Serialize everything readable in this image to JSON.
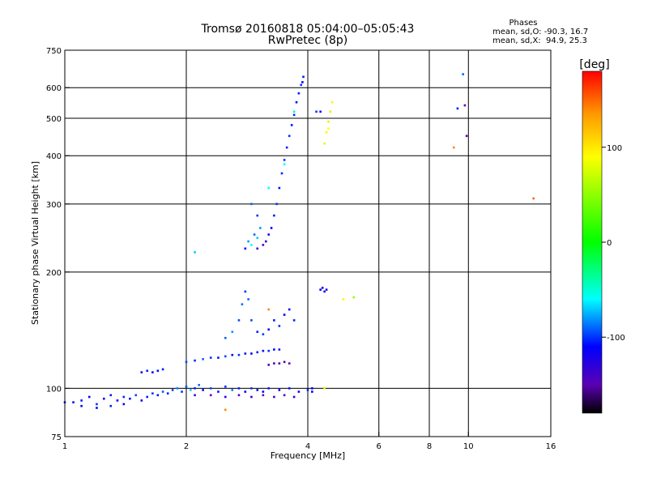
{
  "title": {
    "line1": "Tromsø 20160818 05:04:00–05:05:43",
    "line2": "RwPretec (8p)"
  },
  "phase_box": {
    "heading": "Phases",
    "line_o": "mean, sd,O: -90.3, 16.7",
    "line_x": "mean, sd,X:  94.9, 25.3"
  },
  "colorbar": {
    "label": "[deg]",
    "min": -180,
    "max": 180,
    "ticks": [
      {
        "value": 100,
        "label": "100"
      },
      {
        "value": 0,
        "label": "0"
      },
      {
        "value": -100,
        "label": "-100"
      }
    ],
    "stops": [
      {
        "value": -180,
        "color": "#000000"
      },
      {
        "value": -150,
        "color": "#5a00b4"
      },
      {
        "value": -110,
        "color": "#0000ff"
      },
      {
        "value": -60,
        "color": "#00ffff"
      },
      {
        "value": 0,
        "color": "#00ff00"
      },
      {
        "value": 90,
        "color": "#ffff00"
      },
      {
        "value": 135,
        "color": "#ff9900"
      },
      {
        "value": 180,
        "color": "#ff0000"
      }
    ]
  },
  "chart_data": {
    "type": "scatter",
    "xlabel": "Frequency [MHz]",
    "ylabel": "Stationary phase Virtual Height [km]",
    "x_scale": "log",
    "y_scale": "log",
    "xlim": [
      1,
      16
    ],
    "ylim": [
      75,
      750
    ],
    "x_ticks": [
      {
        "value": 1,
        "label": "1"
      },
      {
        "value": 2,
        "label": "2"
      },
      {
        "value": 4,
        "label": "4"
      },
      {
        "value": 6,
        "label": "6"
      },
      {
        "value": 8,
        "label": "8"
      },
      {
        "value": 10,
        "label": "10"
      },
      {
        "value": 16,
        "label": "16"
      }
    ],
    "x_grid": [
      2,
      4,
      6,
      8,
      10
    ],
    "y_ticks": [
      {
        "value": 75,
        "label": "75"
      },
      {
        "value": 100,
        "label": "100"
      },
      {
        "value": 200,
        "label": "200"
      },
      {
        "value": 300,
        "label": "300"
      },
      {
        "value": 400,
        "label": "400"
      },
      {
        "value": 500,
        "label": "500"
      },
      {
        "value": 600,
        "label": "600"
      },
      {
        "value": 750,
        "label": "750"
      }
    ],
    "y_grid": [
      100,
      200,
      300,
      400,
      500,
      600
    ],
    "points": [
      [
        1.0,
        92,
        -105
      ],
      [
        1.05,
        92,
        -108
      ],
      [
        1.1,
        93,
        -104
      ],
      [
        1.15,
        95,
        -110
      ],
      [
        1.2,
        91,
        -100
      ],
      [
        1.25,
        94,
        -112
      ],
      [
        1.3,
        96,
        -106
      ],
      [
        1.35,
        93,
        -118
      ],
      [
        1.4,
        95,
        -102
      ],
      [
        1.45,
        94,
        -108
      ],
      [
        1.5,
        96,
        -96
      ],
      [
        1.55,
        93,
        -110
      ],
      [
        1.6,
        95,
        -104
      ],
      [
        1.65,
        97,
        -100
      ],
      [
        1.7,
        96,
        -106
      ],
      [
        1.75,
        98,
        -92
      ],
      [
        1.8,
        97,
        -104
      ],
      [
        1.85,
        99,
        -98
      ],
      [
        1.9,
        100,
        -84
      ],
      [
        1.95,
        98,
        -100
      ],
      [
        2.0,
        101,
        -94
      ],
      [
        2.05,
        99,
        -70
      ],
      [
        2.1,
        100,
        -104
      ],
      [
        2.15,
        102,
        -88
      ],
      [
        2.2,
        99,
        -110
      ],
      [
        2.3,
        100,
        -96
      ],
      [
        2.4,
        98,
        -106
      ],
      [
        2.5,
        101,
        -100
      ],
      [
        2.6,
        99,
        -86
      ],
      [
        2.7,
        100,
        -104
      ],
      [
        2.8,
        98,
        -112
      ],
      [
        2.9,
        100,
        -100
      ],
      [
        3.0,
        99,
        -108
      ],
      [
        3.1,
        98,
        -116
      ],
      [
        3.2,
        100,
        -104
      ],
      [
        3.4,
        99,
        -112
      ],
      [
        3.6,
        100,
        -106
      ],
      [
        3.8,
        98,
        -120
      ],
      [
        4.0,
        99,
        -104
      ],
      [
        4.1,
        100,
        -112
      ],
      [
        1.1,
        90,
        -108
      ],
      [
        1.2,
        89,
        -112
      ],
      [
        1.3,
        90,
        -104
      ],
      [
        1.4,
        91,
        -110
      ],
      [
        2.1,
        96,
        -140
      ],
      [
        2.3,
        96,
        -150
      ],
      [
        2.5,
        95,
        -130
      ],
      [
        2.7,
        96,
        -145
      ],
      [
        2.9,
        95,
        -135
      ],
      [
        3.1,
        96,
        -150
      ],
      [
        3.3,
        95,
        -140
      ],
      [
        3.5,
        96,
        -145
      ],
      [
        3.7,
        95,
        -130
      ],
      [
        1.55,
        110,
        -110
      ],
      [
        1.6,
        111,
        -105
      ],
      [
        1.65,
        110,
        -112
      ],
      [
        1.7,
        111,
        -108
      ],
      [
        1.75,
        112,
        -106
      ],
      [
        2.0,
        117,
        -96
      ],
      [
        2.1,
        118,
        -102
      ],
      [
        2.2,
        119,
        -90
      ],
      [
        2.3,
        120,
        -100
      ],
      [
        2.4,
        120,
        -106
      ],
      [
        2.5,
        121,
        -96
      ],
      [
        2.6,
        122,
        -110
      ],
      [
        2.7,
        122,
        -100
      ],
      [
        2.8,
        123,
        -106
      ],
      [
        2.9,
        123,
        -112
      ],
      [
        3.0,
        124,
        -104
      ],
      [
        3.1,
        125,
        -108
      ],
      [
        3.2,
        125,
        -100
      ],
      [
        3.3,
        126,
        -112
      ],
      [
        3.4,
        126,
        -106
      ],
      [
        3.2,
        115,
        -150
      ],
      [
        3.3,
        116,
        -140
      ],
      [
        3.4,
        116,
        -155
      ],
      [
        3.5,
        117,
        -145
      ],
      [
        3.6,
        116,
        -148
      ],
      [
        2.5,
        135,
        -90
      ],
      [
        2.6,
        140,
        -80
      ],
      [
        2.7,
        150,
        -95
      ],
      [
        2.75,
        165,
        -88
      ],
      [
        2.8,
        178,
        -100
      ],
      [
        2.85,
        170,
        -90
      ],
      [
        2.9,
        150,
        -96
      ],
      [
        3.0,
        140,
        -104
      ],
      [
        3.1,
        138,
        -98
      ],
      [
        3.2,
        142,
        -110
      ],
      [
        3.3,
        150,
        -106
      ],
      [
        3.4,
        145,
        -100
      ],
      [
        3.5,
        155,
        -112
      ],
      [
        3.6,
        160,
        -108
      ],
      [
        3.7,
        150,
        -104
      ],
      [
        3.2,
        160,
        140
      ],
      [
        2.8,
        230,
        -110
      ],
      [
        2.85,
        240,
        -80
      ],
      [
        2.9,
        235,
        -60
      ],
      [
        2.95,
        250,
        -90
      ],
      [
        3.0,
        245,
        -70
      ],
      [
        3.05,
        260,
        -80
      ],
      [
        3.0,
        280,
        -100
      ],
      [
        2.9,
        300,
        -90
      ],
      [
        3.0,
        230,
        -140
      ],
      [
        3.1,
        235,
        -150
      ],
      [
        3.15,
        240,
        -130
      ],
      [
        3.2,
        250,
        -120
      ],
      [
        3.25,
        260,
        -110
      ],
      [
        3.3,
        280,
        -105
      ],
      [
        3.35,
        300,
        -100
      ],
      [
        3.4,
        330,
        -106
      ],
      [
        3.45,
        360,
        -102
      ],
      [
        3.5,
        390,
        -100
      ],
      [
        3.55,
        420,
        -104
      ],
      [
        3.6,
        450,
        -100
      ],
      [
        3.65,
        480,
        -106
      ],
      [
        3.7,
        510,
        -102
      ],
      [
        3.75,
        550,
        -108
      ],
      [
        3.8,
        580,
        -104
      ],
      [
        3.85,
        610,
        -100
      ],
      [
        3.9,
        640,
        -106
      ],
      [
        3.88,
        620,
        -110
      ],
      [
        3.7,
        520,
        -40
      ],
      [
        3.5,
        380,
        -60
      ],
      [
        3.2,
        330,
        -60
      ],
      [
        2.1,
        225,
        -70
      ],
      [
        4.4,
        430,
        80
      ],
      [
        4.45,
        460,
        95
      ],
      [
        4.5,
        490,
        100
      ],
      [
        4.55,
        520,
        105
      ],
      [
        4.6,
        550,
        95
      ],
      [
        4.5,
        470,
        90
      ],
      [
        4.3,
        180,
        -120
      ],
      [
        4.35,
        182,
        -110
      ],
      [
        4.4,
        178,
        -125
      ],
      [
        4.45,
        180,
        -115
      ],
      [
        4.3,
        520,
        -120
      ],
      [
        4.2,
        520,
        -100
      ],
      [
        4.9,
        170,
        95
      ],
      [
        5.2,
        172,
        50
      ],
      [
        4.4,
        100,
        80
      ],
      [
        4.1,
        98,
        -110
      ],
      [
        2.5,
        88,
        140
      ],
      [
        9.2,
        420,
        140
      ],
      [
        9.4,
        530,
        -105
      ],
      [
        9.7,
        650,
        -90
      ],
      [
        9.8,
        540,
        -150
      ],
      [
        9.9,
        450,
        -150
      ],
      [
        14.5,
        310,
        150
      ]
    ]
  }
}
